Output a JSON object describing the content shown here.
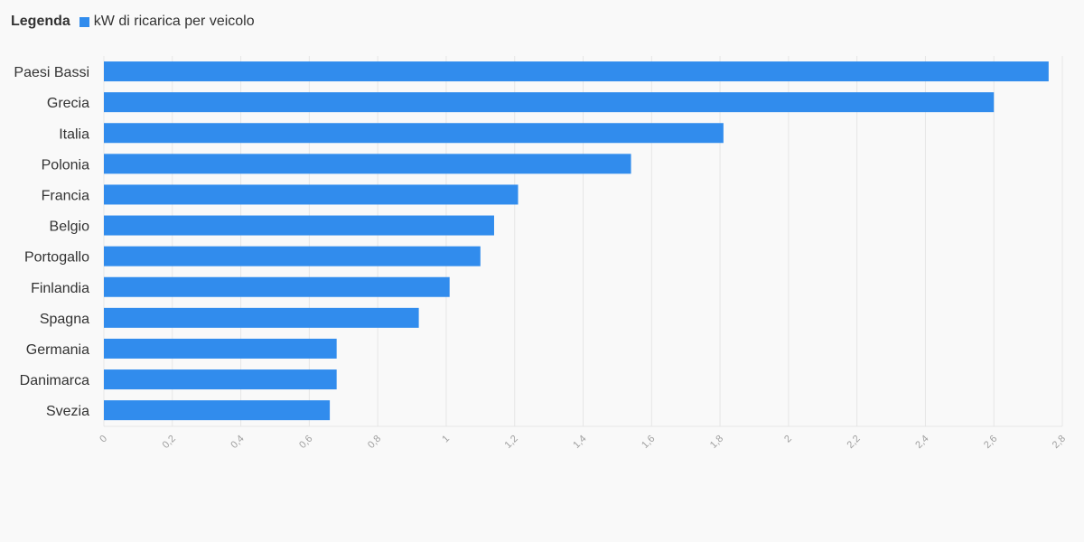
{
  "legend": {
    "title": "Legenda",
    "items": [
      {
        "label": "kW di ricarica per veicolo",
        "color": "#318ced"
      }
    ]
  },
  "chart_data": {
    "type": "bar",
    "orientation": "horizontal",
    "title": "",
    "xlabel": "",
    "ylabel": "",
    "categories": [
      "Paesi Bassi",
      "Grecia",
      "Italia",
      "Polonia",
      "Francia",
      "Belgio",
      "Portogallo",
      "Finlandia",
      "Spagna",
      "Germania",
      "Danimarca",
      "Svezia"
    ],
    "series": [
      {
        "name": "kW di ricarica per veicolo",
        "color": "#318ced",
        "values": [
          2.76,
          2.6,
          1.81,
          1.54,
          1.21,
          1.14,
          1.1,
          1.01,
          0.92,
          0.68,
          0.68,
          0.66
        ]
      }
    ],
    "xlim": [
      0,
      2.8
    ],
    "x_ticks": [
      "0",
      "0,2",
      "0,4",
      "0,6",
      "0,8",
      "1",
      "1,2",
      "1,4",
      "1,6",
      "1,8",
      "2",
      "2,2",
      "2,4",
      "2,6",
      "2,8"
    ],
    "grid": true,
    "legend_position": "top-left"
  }
}
